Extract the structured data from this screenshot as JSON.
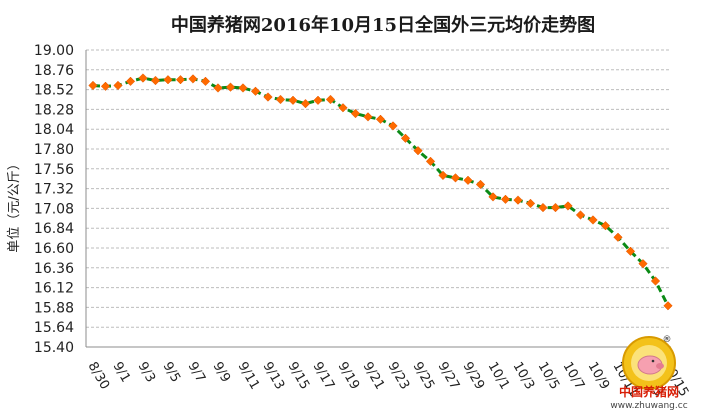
{
  "chart_data": {
    "type": "line",
    "title": "中国养猪网2016年10月15日全国外三元均价走势图",
    "ylabel": "单位（元/公斤）",
    "ylim": [
      15.4,
      19.0
    ],
    "yticks": [
      "19.00",
      "18.76",
      "18.52",
      "18.28",
      "18.04",
      "17.80",
      "17.56",
      "17.32",
      "17.08",
      "16.84",
      "16.60",
      "16.36",
      "16.12",
      "15.88",
      "15.64",
      "15.40"
    ],
    "x": [
      "8/30",
      "8/31",
      "9/1",
      "9/2",
      "9/3",
      "9/4",
      "9/5",
      "9/6",
      "9/7",
      "9/8",
      "9/9",
      "9/10",
      "9/11",
      "9/12",
      "9/13",
      "9/14",
      "9/15",
      "9/16",
      "9/17",
      "9/18",
      "9/19",
      "9/20",
      "9/21",
      "9/22",
      "9/23",
      "9/24",
      "9/25",
      "9/26",
      "9/27",
      "9/28",
      "9/29",
      "9/30",
      "10/1",
      "10/2",
      "10/3",
      "10/4",
      "10/5",
      "10/6",
      "10/7",
      "10/8",
      "10/9",
      "10/10",
      "10/11",
      "10/12",
      "10/13",
      "10/14",
      "10/15"
    ],
    "xticklabels": [
      "8/30",
      "9/1",
      "9/3",
      "9/5",
      "9/7",
      "9/9",
      "9/11",
      "9/13",
      "9/15",
      "9/17",
      "9/19",
      "9/21",
      "9/23",
      "9/25",
      "9/27",
      "9/29",
      "10/1",
      "10/3",
      "10/5",
      "10/7",
      "10/9",
      "10/11",
      "10/13",
      "10/15"
    ],
    "series": [
      {
        "values": [
          18.57,
          18.56,
          18.57,
          18.62,
          18.66,
          18.63,
          18.64,
          18.64,
          18.65,
          18.62,
          18.54,
          18.55,
          18.54,
          18.5,
          18.43,
          18.4,
          18.39,
          18.35,
          18.39,
          18.4,
          18.3,
          18.23,
          18.19,
          18.16,
          18.08,
          17.93,
          17.78,
          17.65,
          17.48,
          17.45,
          17.42,
          17.37,
          17.22,
          17.19,
          17.18,
          17.14,
          17.09,
          17.09,
          17.11,
          17.0,
          16.94,
          16.87,
          16.73,
          16.56,
          16.41,
          16.2,
          15.9
        ],
        "color": "#ff6a00",
        "line_color": "#0b8a16"
      }
    ],
    "grid": true,
    "legend": "none"
  },
  "logo": {
    "text": "中国养猪网",
    "url": "www.zhuwang.cc",
    "registered": "®"
  }
}
